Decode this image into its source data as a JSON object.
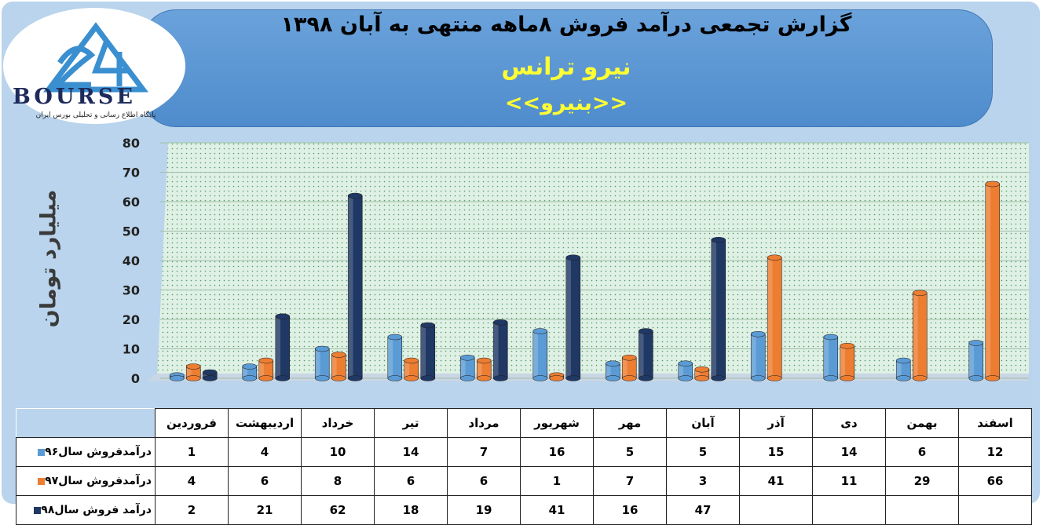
{
  "header": {
    "title": "گزارش تجمعی درآمد فروش ۸ماهه منتهی به آبان ۱۳۹۸",
    "company": "نیرو ترانس",
    "ticker": "<<بنیرو>>"
  },
  "logo": {
    "brand": "BOURSE",
    "tagline": "پایگاه اطلاع رسانی و تحلیلی بورس ایران"
  },
  "chart_data": {
    "type": "bar",
    "categories": [
      "فروردین",
      "اردیبهشت",
      "خرداد",
      "تیر",
      "مرداد",
      "شهریور",
      "مهر",
      "آبان",
      "آذر",
      "دی",
      "بهمن",
      "اسفند"
    ],
    "series": [
      {
        "name": "درآمدفروش سال۹۶",
        "color": "#5b9bd5",
        "values": [
          1,
          4,
          10,
          14,
          7,
          16,
          5,
          5,
          15,
          14,
          6,
          12
        ]
      },
      {
        "name": "درآمدفروش سال۹۷",
        "color": "#ed7d31",
        "values": [
          4,
          6,
          8,
          6,
          6,
          1,
          7,
          3,
          41,
          11,
          29,
          66
        ]
      },
      {
        "name": "درآمد فروش سال۹۸",
        "color": "#1f3864",
        "values": [
          2,
          21,
          62,
          18,
          19,
          41,
          16,
          47,
          null,
          null,
          null,
          null
        ]
      }
    ],
    "ylabel": "میلیارد تومان",
    "ylim": [
      0,
      80
    ],
    "yticks": [
      0,
      10,
      20,
      30,
      40,
      50,
      60,
      70,
      80
    ],
    "grid": true,
    "legend": "data-table-below"
  }
}
